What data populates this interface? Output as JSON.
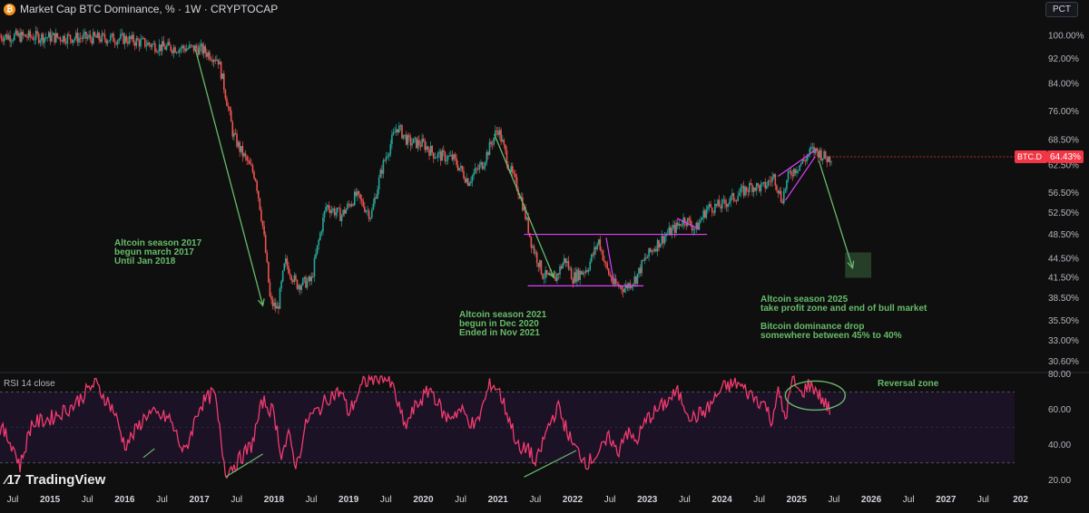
{
  "header": {
    "symbol_icon": "bitcoin-icon",
    "title": "Market Cap BTC Dominance, % · 1W · CRYPTOCAP",
    "scale_button": "PCT"
  },
  "branding": {
    "logo_text": "TradingView",
    "logo_icon": "tradingview-icon"
  },
  "colors": {
    "up": "#26a69a",
    "down": "#ef5350",
    "rsi": "#f23b6f",
    "annotation": "#66bb6a",
    "pattern": "#e040fb",
    "price_badge": "#f23645",
    "background": "#0f0f0f"
  },
  "chart_data": [
    {
      "type": "candlestick",
      "title": "Market Cap BTC Dominance, % · 1W · CRYPTOCAP",
      "yscale": "log",
      "ylim": [
        29.5,
        106
      ],
      "y_ticks": [
        "100.00%",
        "92.00%",
        "84.00%",
        "76.00%",
        "68.50%",
        "62.50%",
        "56.50%",
        "52.50%",
        "48.50%",
        "44.50%",
        "41.50%",
        "38.50%",
        "35.50%",
        "33.00%",
        "30.60%"
      ],
      "x_ticks": [
        "Jul",
        "2015",
        "Jul",
        "2016",
        "Jul",
        "2017",
        "Jul",
        "2018",
        "Jul",
        "2019",
        "Jul",
        "2020",
        "Jul",
        "2021",
        "Jul",
        "2022",
        "Jul",
        "2023",
        "Jul",
        "2024",
        "Jul",
        "2025",
        "Jul",
        "2026",
        "Jul",
        "2027",
        "Jul",
        "202"
      ],
      "x_range": [
        2014.33,
        2027.92
      ],
      "last_value": {
        "label": "BTC.D",
        "value": "64.43%"
      },
      "series_anchors": {
        "date": [
          2014.33,
          2016.0,
          2016.5,
          2017.0,
          2017.25,
          2017.45,
          2017.55,
          2017.75,
          2017.85,
          2017.95,
          2018.05,
          2018.15,
          2018.3,
          2018.5,
          2018.7,
          2018.9,
          2019.1,
          2019.3,
          2019.45,
          2019.65,
          2019.8,
          2020.0,
          2020.15,
          2020.4,
          2020.6,
          2020.8,
          2021.0,
          2021.15,
          2021.3,
          2021.45,
          2021.6,
          2021.75,
          2021.9,
          2022.0,
          2022.2,
          2022.35,
          2022.45,
          2022.55,
          2022.7,
          2022.85,
          2022.95,
          2023.1,
          2023.25,
          2023.4,
          2023.5,
          2023.65,
          2023.8,
          2024.0,
          2024.2,
          2024.4,
          2024.55,
          2024.7,
          2024.8,
          2024.9,
          2025.0,
          2025.1,
          2025.2,
          2025.3,
          2025.4,
          2025.48
        ],
        "value": [
          100.0,
          99.0,
          96.0,
          95.5,
          92.0,
          70.0,
          66.0,
          60.0,
          50.0,
          38.0,
          37.0,
          44.0,
          40.5,
          41.0,
          54.0,
          52.0,
          56.0,
          52.0,
          62.0,
          72.0,
          68.0,
          67.5,
          65.0,
          64.0,
          59.0,
          63.0,
          71.5,
          62.0,
          56.0,
          47.0,
          42.0,
          41.0,
          44.5,
          41.5,
          43.0,
          47.5,
          43.0,
          40.5,
          40.0,
          41.5,
          44.0,
          46.5,
          48.5,
          50.0,
          51.5,
          49.5,
          53.5,
          54.0,
          56.0,
          58.0,
          57.5,
          60.0,
          55.0,
          60.5,
          62.0,
          63.5,
          66.0,
          65.5,
          64.0,
          64.43
        ]
      }
    },
    {
      "type": "line",
      "title": "RSI 14 close",
      "ylim": [
        15,
        80
      ],
      "y_ticks": [
        "80.00",
        "60.00",
        "40.00",
        "20.00"
      ],
      "reference_lines": [
        30,
        70
      ],
      "x_range": [
        2014.33,
        2027.92
      ],
      "series_anchors": {
        "date": [
          2014.33,
          2014.5,
          2014.6,
          2014.75,
          2015.0,
          2015.3,
          2015.6,
          2015.85,
          2016.0,
          2016.1,
          2016.3,
          2016.6,
          2016.8,
          2017.0,
          2017.2,
          2017.35,
          2017.5,
          2017.7,
          2017.85,
          2018.0,
          2018.1,
          2018.2,
          2018.3,
          2018.45,
          2018.6,
          2018.75,
          2018.9,
          2019.0,
          2019.2,
          2019.45,
          2019.6,
          2019.75,
          2019.9,
          2020.1,
          2020.3,
          2020.5,
          2020.7,
          2020.9,
          2021.0,
          2021.15,
          2021.3,
          2021.4,
          2021.5,
          2021.65,
          2021.8,
          2022.0,
          2022.2,
          2022.4,
          2022.5,
          2022.6,
          2022.7,
          2022.85,
          2023.0,
          2023.2,
          2023.4,
          2023.6,
          2023.8,
          2024.0,
          2024.2,
          2024.4,
          2024.5,
          2024.6,
          2024.65,
          2024.75,
          2024.85,
          2024.95,
          2025.05,
          2025.15,
          2025.25,
          2025.35,
          2025.45
        ],
        "value": [
          50,
          40,
          28,
          52,
          55,
          62,
          75,
          60,
          40,
          45,
          58,
          55,
          35,
          62,
          70,
          25,
          30,
          40,
          65,
          58,
          35,
          45,
          28,
          55,
          60,
          68,
          70,
          58,
          75,
          80,
          72,
          50,
          62,
          72,
          55,
          60,
          50,
          75,
          72,
          55,
          35,
          40,
          28,
          48,
          62,
          40,
          30,
          38,
          45,
          35,
          48,
          42,
          55,
          62,
          70,
          55,
          60,
          72,
          75,
          68,
          65,
          62,
          52,
          70,
          55,
          78,
          68,
          74,
          72,
          65,
          60
        ]
      }
    }
  ],
  "annotations": {
    "alt_2017": [
      "Altcoin season 2017",
      "begun march 2017",
      "Until Jan 2018"
    ],
    "alt_2021": [
      "Altcoin season 2021",
      "begun in Dec 2020",
      "Ended in Nov 2021"
    ],
    "alt_2025": [
      "Altcoin season 2025",
      "take profit zone and end of bull market",
      "",
      "Bitcoin dominance drop",
      "somewhere between 45% to 40%"
    ],
    "reversal": "Reversal zone"
  }
}
